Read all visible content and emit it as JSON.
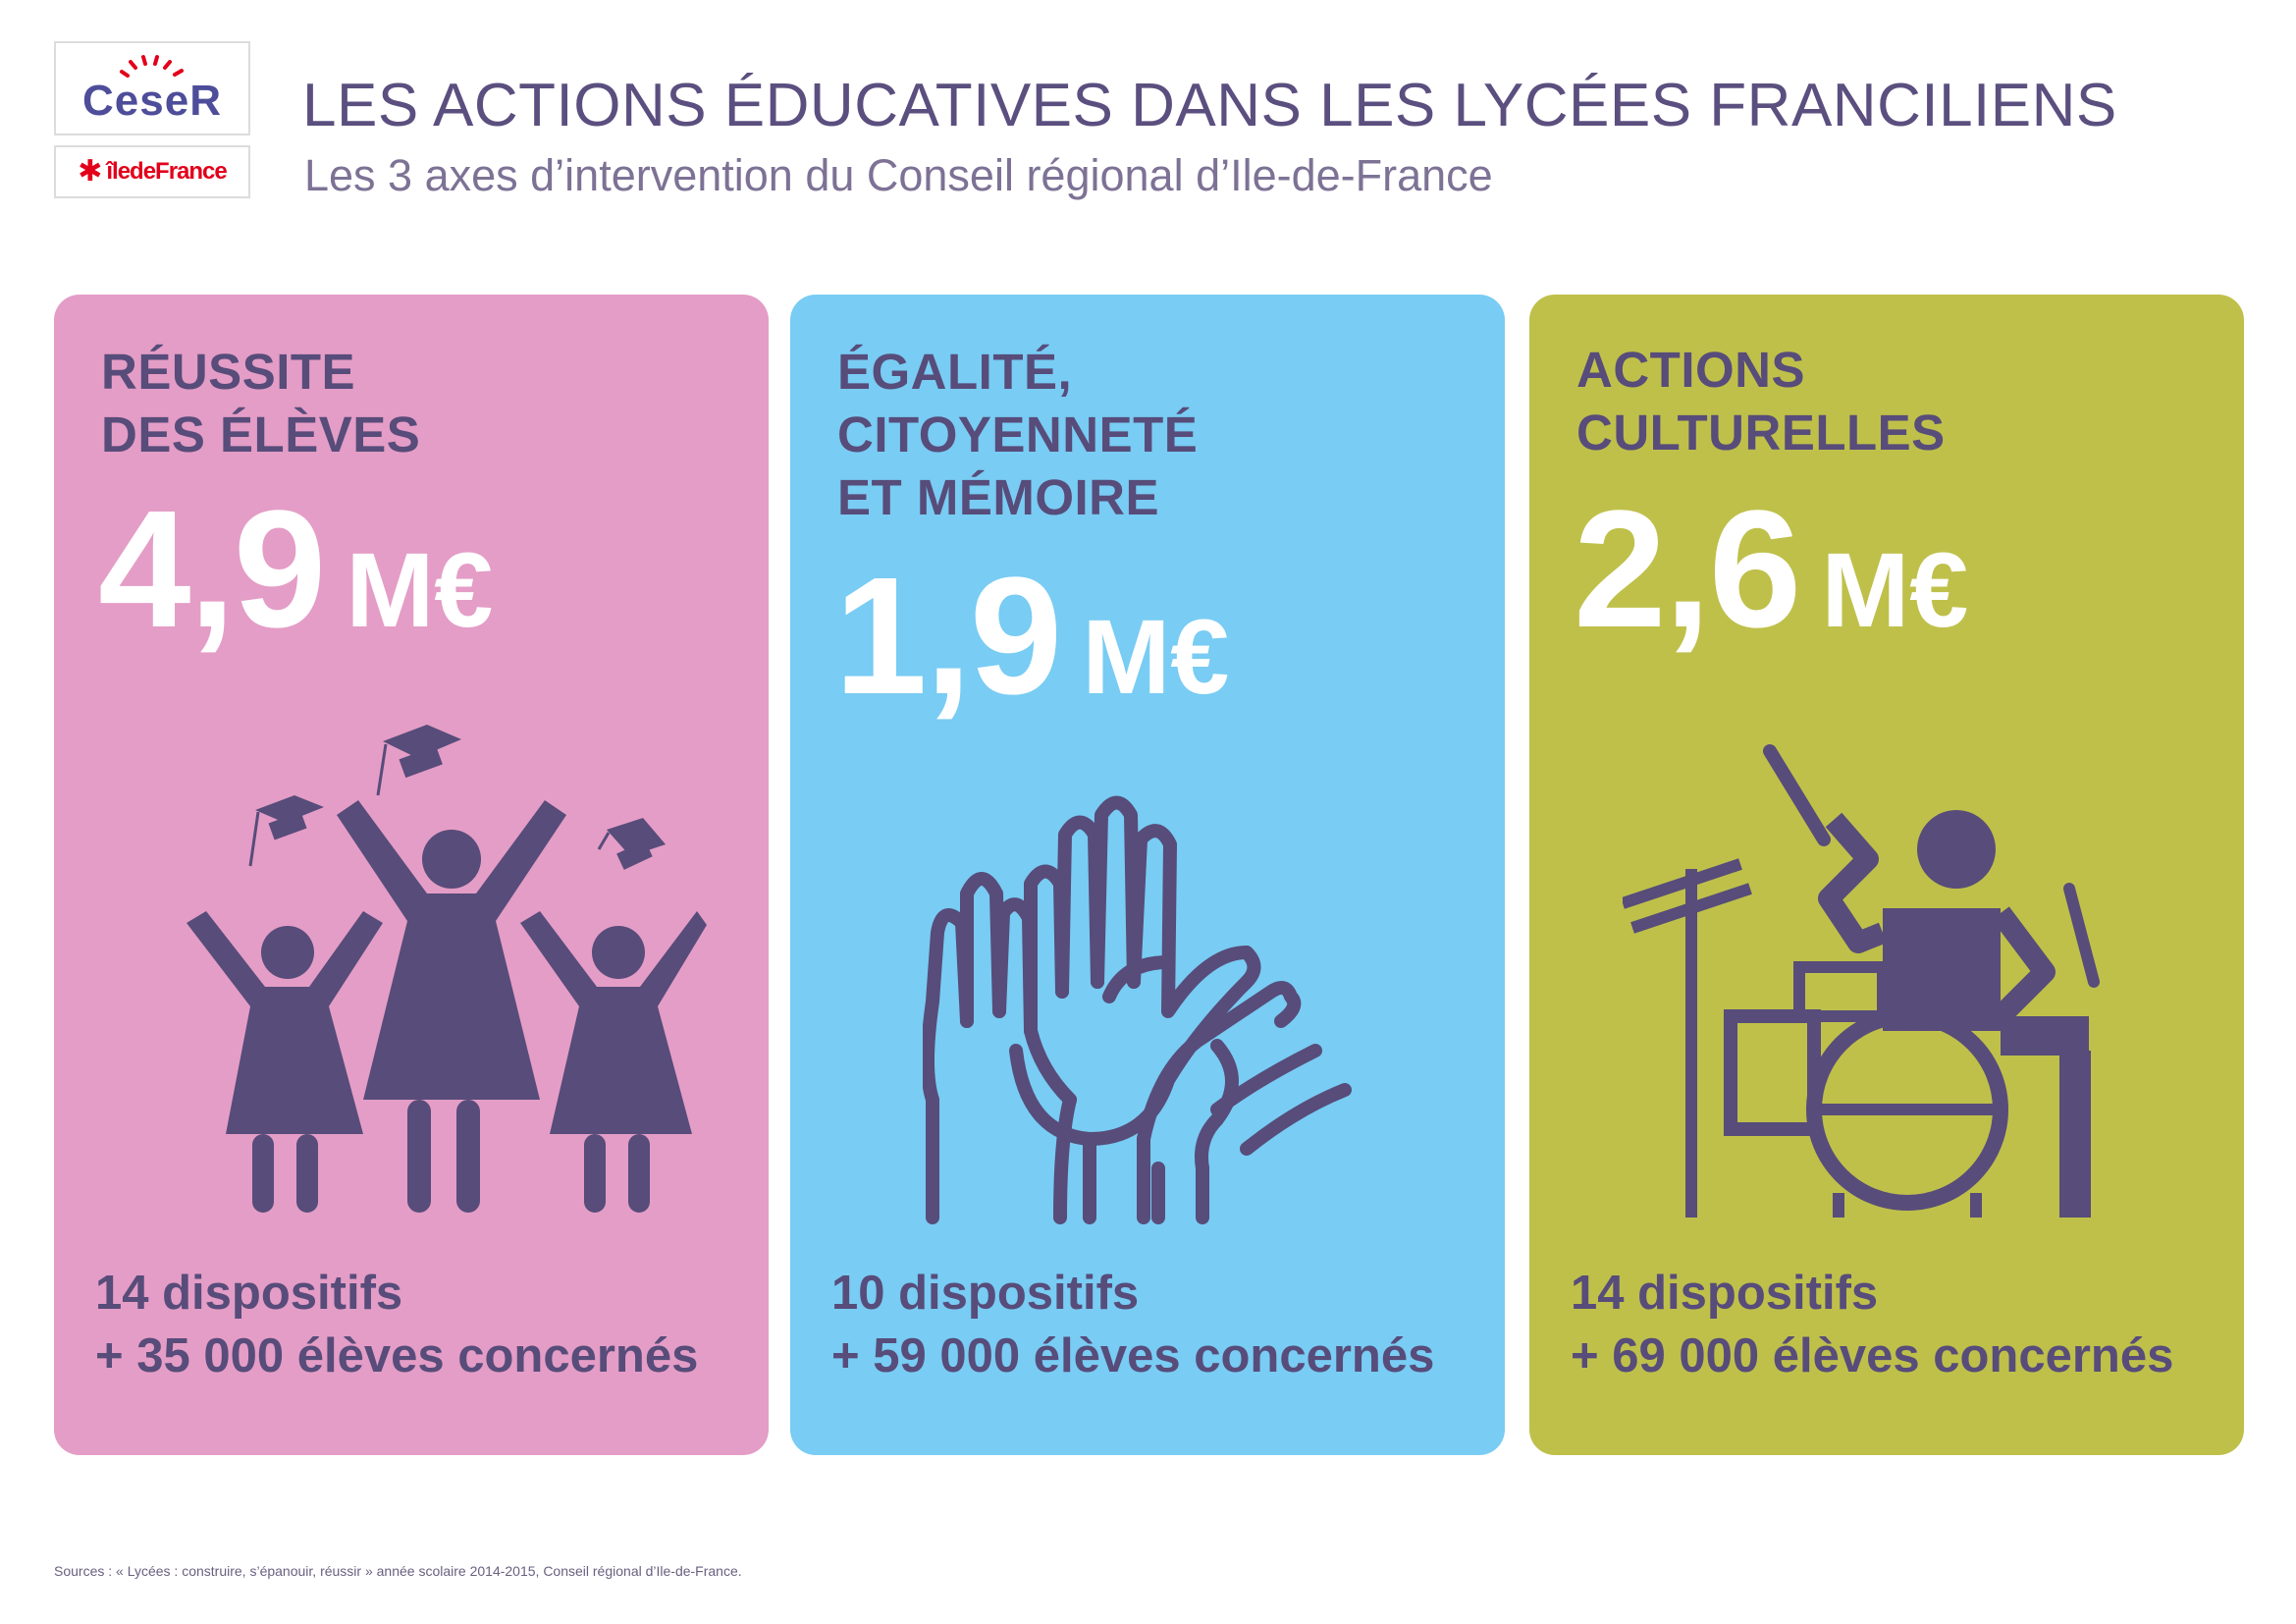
{
  "logos": {
    "ceser": "CeseR",
    "idf": "îledeFrance"
  },
  "header": {
    "title": "LES ACTIONS ÉDUCATIVES DANS LES LYCÉES FRANCILIENS",
    "subtitle": "Les 3 axes d’intervention du Conseil régional d’Ile-de-France"
  },
  "cards": [
    {
      "title_lines": [
        "RÉUSSITE",
        "DES ÉLÈVES"
      ],
      "amount": "4,9",
      "unit": "M€",
      "dispositifs": "14 dispositifs",
      "eleves": "+ 35 000 élèves concernés",
      "icon": "graduation-celebration-icon",
      "color": "#e49dc6"
    },
    {
      "title_lines": [
        "ÉGALITÉ,",
        "CITOYENNETÉ",
        "ET MÉMOIRE"
      ],
      "amount": "1,9",
      "unit": "M€",
      "dispositifs": "10 dispositifs",
      "eleves": "+ 59 000 élèves concernés",
      "icon": "raised-hands-icon",
      "color": "#79ccf3"
    },
    {
      "title_lines": [
        "ACTIONS",
        "CULTURELLES"
      ],
      "amount": "2,6",
      "unit": "M€",
      "dispositifs": "14 dispositifs",
      "eleves": "+ 69 000 élèves concernés",
      "icon": "drummer-icon",
      "color": "#bfc04a"
    }
  ],
  "colors": {
    "text": "#574c7a",
    "title": "#5b4f7f",
    "icon": "#574c7a"
  },
  "sources": "Sources : « Lycées : construire, s’épanouir, réussir » année scolaire 2014-2015, Conseil régional d’Ile-de-France."
}
